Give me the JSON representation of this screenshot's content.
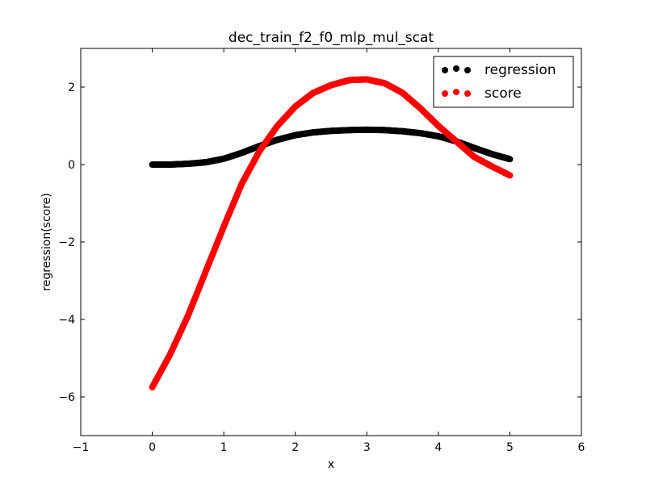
{
  "chart_data": {
    "type": "scatter",
    "title": "dec_train_f2_f0_mlp_mul_scat",
    "xlabel": "x",
    "ylabel": "regression(score)",
    "xlim": [
      -1,
      6
    ],
    "ylim": [
      -7,
      3
    ],
    "xticks": [
      "−1",
      "0",
      "1",
      "2",
      "3",
      "4",
      "5",
      "6"
    ],
    "yticks": [
      "−6",
      "−4",
      "−2",
      "0",
      "2"
    ],
    "xtick_values": [
      -1,
      0,
      1,
      2,
      3,
      4,
      5,
      6
    ],
    "ytick_values": [
      -6,
      -4,
      -2,
      0,
      2
    ],
    "legend_position": "top-right",
    "grid": false,
    "series": [
      {
        "name": "regression",
        "color": "#000000",
        "points": [
          [
            0.0,
            0.0
          ],
          [
            0.25,
            0.0
          ],
          [
            0.5,
            0.02
          ],
          [
            0.75,
            0.06
          ],
          [
            1.0,
            0.15
          ],
          [
            1.25,
            0.3
          ],
          [
            1.5,
            0.48
          ],
          [
            1.75,
            0.64
          ],
          [
            2.0,
            0.76
          ],
          [
            2.25,
            0.83
          ],
          [
            2.5,
            0.87
          ],
          [
            2.75,
            0.89
          ],
          [
            3.0,
            0.9
          ],
          [
            3.25,
            0.89
          ],
          [
            3.5,
            0.86
          ],
          [
            3.75,
            0.81
          ],
          [
            4.0,
            0.73
          ],
          [
            4.25,
            0.6
          ],
          [
            4.5,
            0.43
          ],
          [
            4.75,
            0.27
          ],
          [
            5.0,
            0.14
          ]
        ]
      },
      {
        "name": "score",
        "color": "#ff0000",
        "points": [
          [
            0.0,
            -5.75
          ],
          [
            0.25,
            -4.9
          ],
          [
            0.5,
            -3.9
          ],
          [
            0.75,
            -2.75
          ],
          [
            1.0,
            -1.6
          ],
          [
            1.25,
            -0.5
          ],
          [
            1.5,
            0.35
          ],
          [
            1.75,
            1.0
          ],
          [
            2.0,
            1.5
          ],
          [
            2.25,
            1.85
          ],
          [
            2.5,
            2.05
          ],
          [
            2.75,
            2.18
          ],
          [
            3.0,
            2.2
          ],
          [
            3.25,
            2.1
          ],
          [
            3.5,
            1.85
          ],
          [
            3.75,
            1.45
          ],
          [
            4.0,
            1.0
          ],
          [
            4.25,
            0.6
          ],
          [
            4.5,
            0.2
          ],
          [
            4.75,
            -0.05
          ],
          [
            5.0,
            -0.28
          ]
        ]
      }
    ]
  }
}
